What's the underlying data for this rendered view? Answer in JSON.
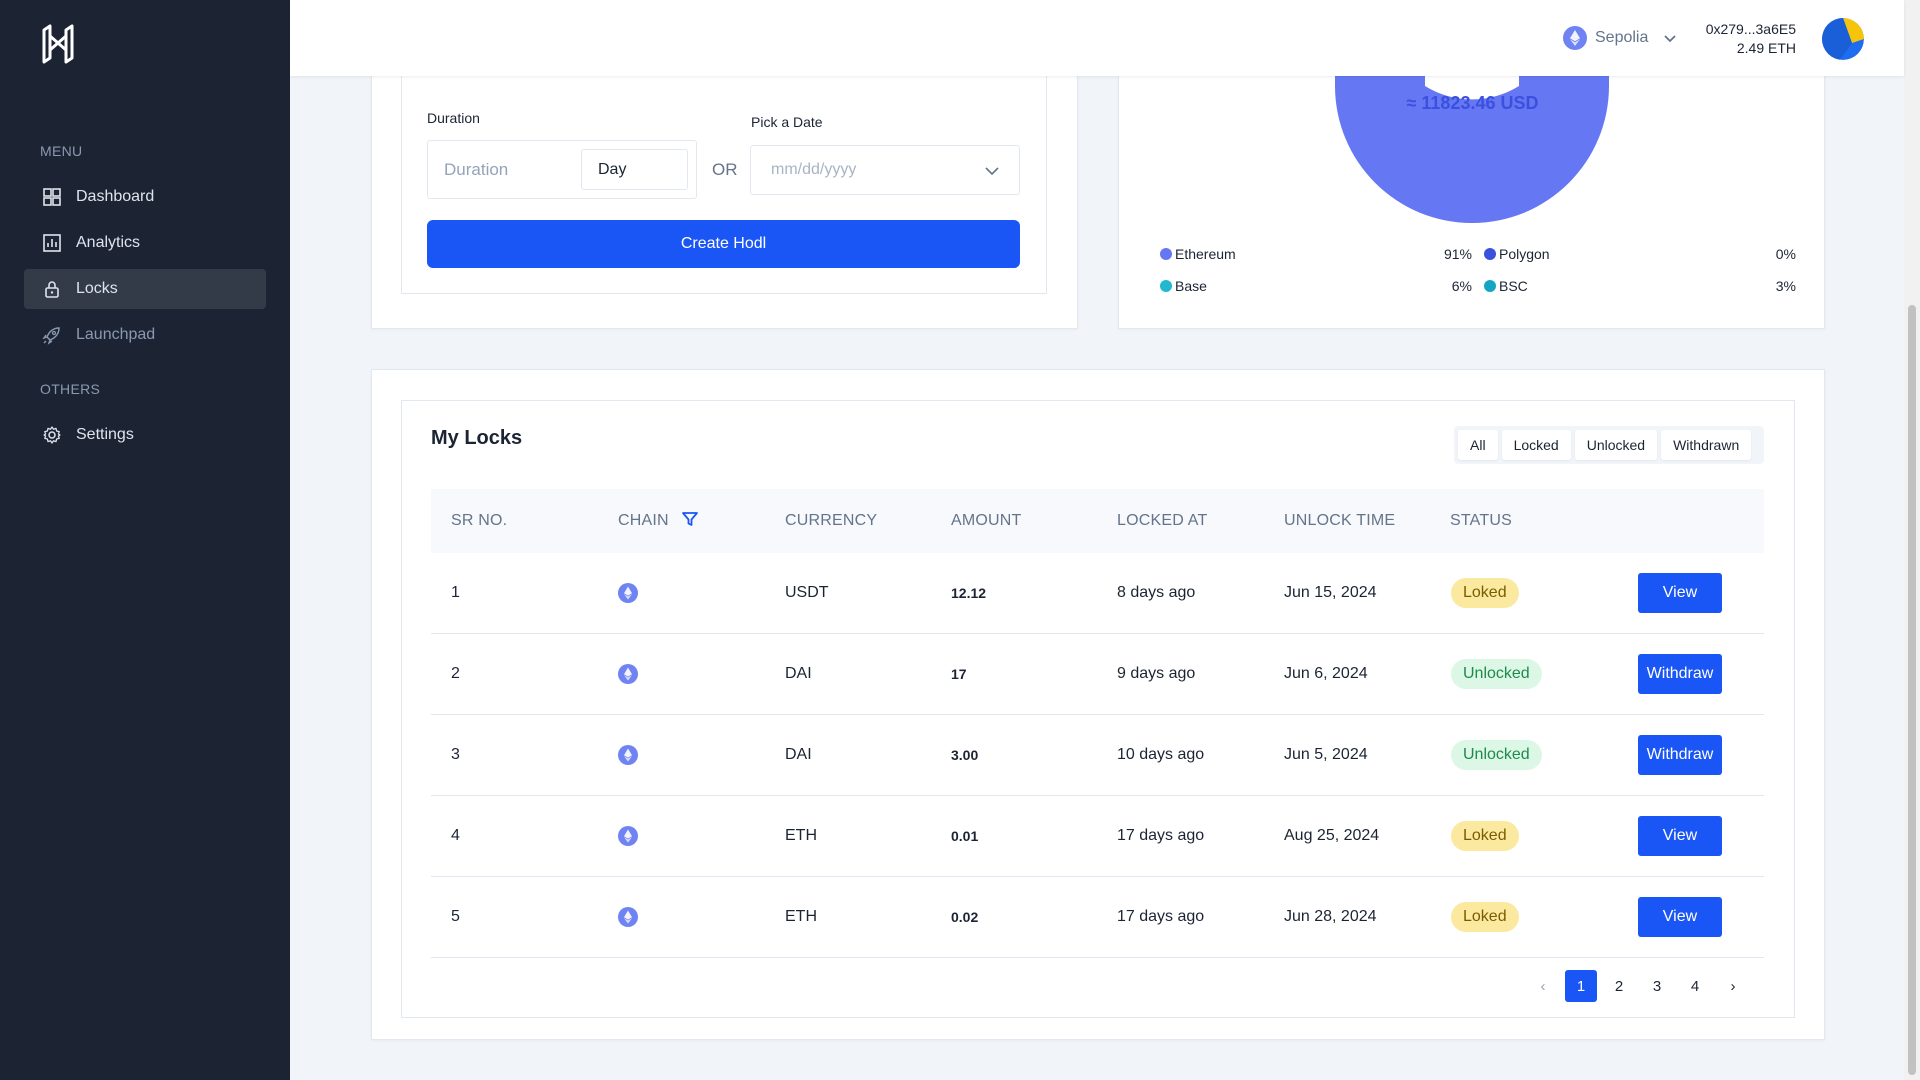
{
  "sidebar": {
    "menu_heading": "MENU",
    "others_heading": "OTHERS",
    "items": [
      {
        "label": "Dashboard",
        "icon": "grid-icon"
      },
      {
        "label": "Analytics",
        "icon": "chart-icon"
      },
      {
        "label": "Locks",
        "icon": "lock-icon",
        "active": true
      },
      {
        "label": "Launchpad",
        "icon": "rocket-icon"
      },
      {
        "label": "Settings",
        "icon": "gear-icon"
      }
    ]
  },
  "header": {
    "network": "Sepolia",
    "wallet_address": "0x279...3a6E5",
    "wallet_balance": "2.49 ETH"
  },
  "create_form": {
    "duration_label": "Duration",
    "duration_placeholder": "Duration",
    "unit_value": "Day",
    "or_text": "OR",
    "date_label": "Pick a Date",
    "date_placeholder": "mm/dd/yyyy",
    "submit_label": "Create Hodl"
  },
  "portfolio": {
    "total": "≈ 11823.46 USD",
    "legend": [
      {
        "name": "Ethereum",
        "pct": "91%",
        "color": "#6577f3"
      },
      {
        "name": "Polygon",
        "pct": "0%",
        "color": "#3c50e0"
      },
      {
        "name": "Base",
        "pct": "6%",
        "color": "#22b8cf"
      },
      {
        "name": "BSC",
        "pct": "3%",
        "color": "#14a5c4"
      }
    ],
    "ring_color": "#6577f3"
  },
  "locks": {
    "title": "My Locks",
    "filters": [
      "All",
      "Locked",
      "Unlocked",
      "Withdrawn"
    ],
    "columns": [
      "SR NO.",
      "CHAIN",
      "CURRENCY",
      "AMOUNT",
      "LOCKED AT",
      "UNLOCK TIME",
      "STATUS"
    ],
    "rows": [
      {
        "sr": "1",
        "currency": "USDT",
        "amount": "12.12",
        "locked_at": "8 days ago",
        "unlock": "Jun 15, 2024",
        "status": "Loked",
        "status_type": "locked",
        "action": "View"
      },
      {
        "sr": "2",
        "currency": "DAI",
        "amount": "17",
        "locked_at": "9 days ago",
        "unlock": "Jun 6, 2024",
        "status": "Unlocked",
        "status_type": "unlocked",
        "action": "Withdraw"
      },
      {
        "sr": "3",
        "currency": "DAI",
        "amount": "3.00",
        "locked_at": "10 days ago",
        "unlock": "Jun 5, 2024",
        "status": "Unlocked",
        "status_type": "unlocked",
        "action": "Withdraw"
      },
      {
        "sr": "4",
        "currency": "ETH",
        "amount": "0.01",
        "locked_at": "17 days ago",
        "unlock": "Aug 25, 2024",
        "status": "Loked",
        "status_type": "locked",
        "action": "View"
      },
      {
        "sr": "5",
        "currency": "ETH",
        "amount": "0.02",
        "locked_at": "17 days ago",
        "unlock": "Jun 28, 2024",
        "status": "Loked",
        "status_type": "locked",
        "action": "View"
      }
    ],
    "pagination": {
      "pages": [
        "1",
        "2",
        "3",
        "4"
      ],
      "current": "1",
      "prev": "‹",
      "next": "›"
    }
  }
}
